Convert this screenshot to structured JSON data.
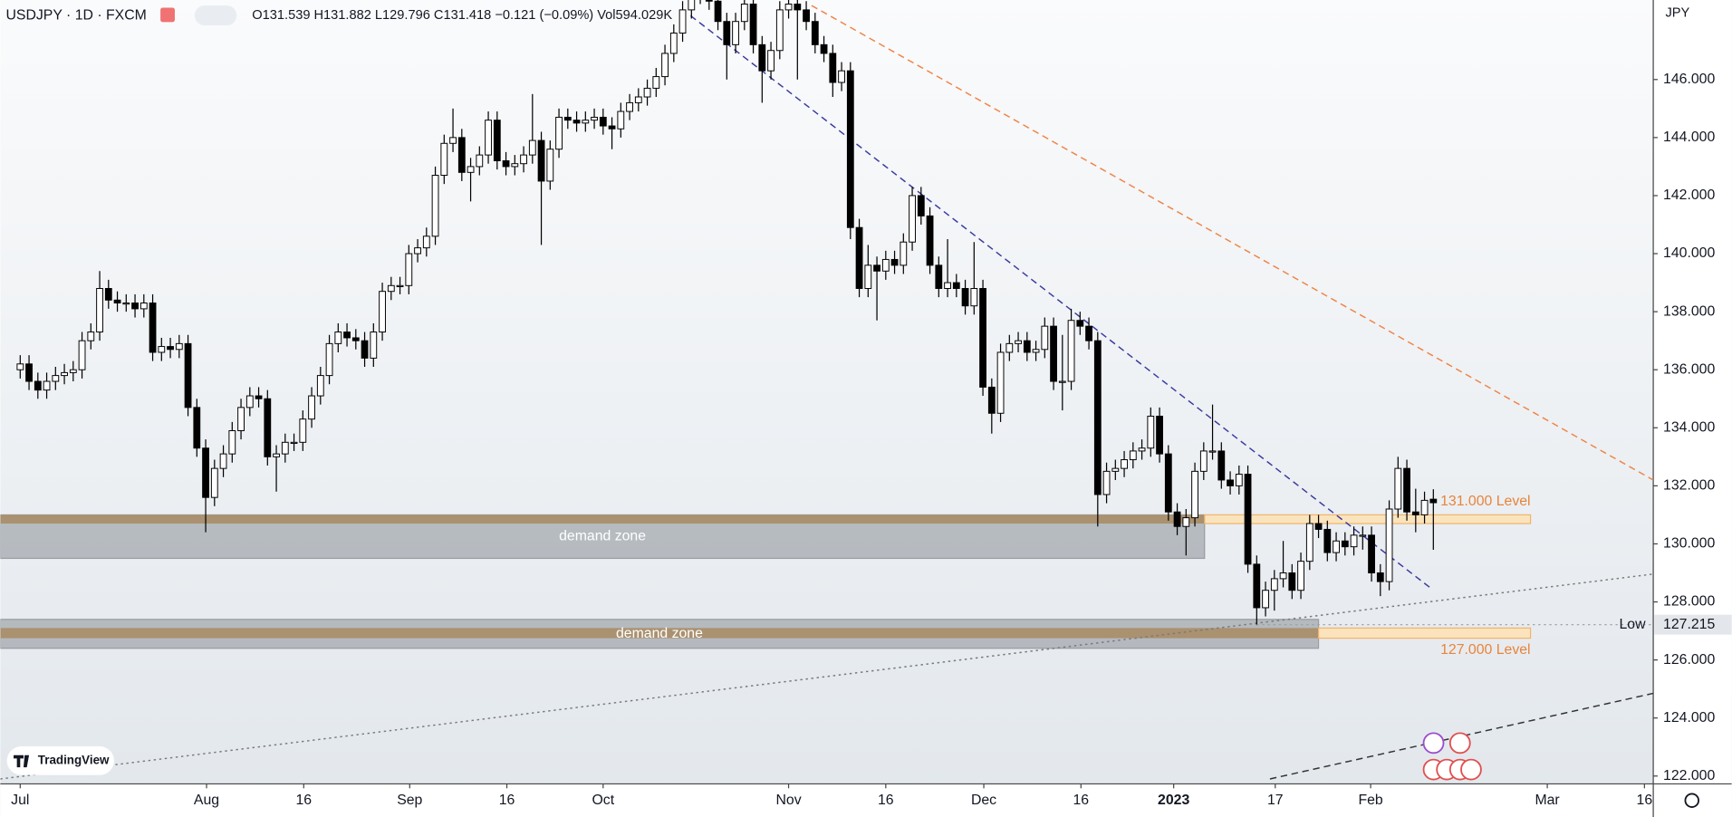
{
  "chart_data": {
    "type": "candlestick",
    "title": "USDJPY · 1D · FXCM",
    "legend": "O131.539 H131.882 L129.796 C131.418 −0.121 (−0.09%) Vol594.029K",
    "currency": "JPY",
    "watermark": "TradingView",
    "up_color": "#ffffff",
    "down_color": "#000000",
    "xlim": [
      -2.25,
      184.9
    ],
    "ylim": [
      121.73,
      148.74
    ],
    "grid": false,
    "xticks": [
      {
        "value": 0,
        "label": "Jul"
      },
      {
        "value": 21.1,
        "label": "Aug"
      },
      {
        "value": 32.1,
        "label": "16"
      },
      {
        "value": 44.1,
        "label": "Sep"
      },
      {
        "value": 55.1,
        "label": "16"
      },
      {
        "value": 66,
        "label": "Oct"
      },
      {
        "value": 87,
        "label": "Nov"
      },
      {
        "value": 98,
        "label": "16"
      },
      {
        "value": 109.1,
        "label": "Dec"
      },
      {
        "value": 120.1,
        "label": "16"
      },
      {
        "value": 130.6,
        "label": "2023",
        "bold": true
      },
      {
        "value": 142.1,
        "label": "17"
      },
      {
        "value": 152.9,
        "label": "Feb"
      },
      {
        "value": 172.9,
        "label": "Mar"
      },
      {
        "value": 183.9,
        "label": "16"
      }
    ],
    "yticks": [
      {
        "value": 122,
        "label": "122.000"
      },
      {
        "value": 124,
        "label": "124.000"
      },
      {
        "value": 126,
        "label": "126.000"
      },
      {
        "value": 128,
        "label": "128.000"
      },
      {
        "value": 130,
        "label": "130.000"
      },
      {
        "value": 132,
        "label": "132.000"
      },
      {
        "value": 134,
        "label": "134.000"
      },
      {
        "value": 136,
        "label": "136.000"
      },
      {
        "value": 138,
        "label": "138.000"
      },
      {
        "value": 140,
        "label": "140.000"
      },
      {
        "value": 142,
        "label": "142.000"
      },
      {
        "value": 144,
        "label": "144.000"
      },
      {
        "value": 146,
        "label": "146.000"
      }
    ],
    "open": [
      136.0,
      136.2,
      135.6,
      135.3,
      135.6,
      135.8,
      135.9,
      136.0,
      137.0,
      137.3,
      138.8,
      138.4,
      138.3,
      138.3,
      138.1,
      138.3,
      136.6,
      136.8,
      136.7,
      136.9,
      134.7,
      133.3,
      131.6,
      132.6,
      133.1,
      133.9,
      134.7,
      135.1,
      135.0,
      133.0,
      133.1,
      133.5,
      133.5,
      134.3,
      135.1,
      135.8,
      136.9,
      137.3,
      137.1,
      137.0,
      136.4,
      137.3,
      138.7,
      138.9,
      138.9,
      140.0,
      140.2,
      140.6,
      142.7,
      143.8,
      144.0,
      142.8,
      143.0,
      143.4,
      144.6,
      143.2,
      143.0,
      143.1,
      143.4,
      143.9,
      142.5,
      143.6,
      144.7,
      144.6,
      144.5,
      144.6,
      144.7,
      144.4,
      144.3,
      144.9,
      145.2,
      145.4,
      145.7,
      146.1,
      146.9,
      147.6,
      148.4,
      148.9,
      148.9,
      148.7,
      148.0,
      147.2,
      148.0,
      148.6,
      147.2,
      146.3,
      147.0,
      148.4,
      148.6,
      148.4,
      148.0,
      147.2,
      146.9,
      145.9,
      146.3,
      140.9,
      138.8,
      139.6,
      139.4,
      139.8,
      139.6,
      140.4,
      142.0,
      141.3,
      139.6,
      138.8,
      139.0,
      138.8,
      138.2,
      138.8,
      135.4,
      134.5,
      136.6,
      136.9,
      137.0,
      136.6,
      136.7,
      137.5,
      135.6,
      135.6,
      137.7,
      137.5,
      137.0,
      131.7,
      132.5,
      132.6,
      132.9,
      133.2,
      133.3,
      134.4,
      133.1,
      131.1,
      130.6,
      130.9,
      132.5,
      133.2,
      133.2,
      132.2,
      132.0,
      132.4,
      129.3,
      127.8,
      128.4,
      128.8,
      129.0,
      128.4,
      129.4,
      130.7,
      130.5,
      129.7,
      130.1,
      129.9,
      130.3,
      130.3,
      129.0,
      128.7,
      131.2,
      132.6,
      131.1,
      131.0,
      131.539
    ],
    "high": [
      136.5,
      136.5,
      135.9,
      135.9,
      136.1,
      136.2,
      136.3,
      137.3,
      137.6,
      139.4,
      139.1,
      138.7,
      138.6,
      138.6,
      138.6,
      138.6,
      137.1,
      137.1,
      137.2,
      137.2,
      135.0,
      133.6,
      132.9,
      133.4,
      134.2,
      135.0,
      135.4,
      135.4,
      135.3,
      133.4,
      133.8,
      133.8,
      134.6,
      135.4,
      136.1,
      137.2,
      137.6,
      137.6,
      137.4,
      137.3,
      137.6,
      139.0,
      139.2,
      139.2,
      140.3,
      140.5,
      140.9,
      143.0,
      144.1,
      145.0,
      144.3,
      143.3,
      143.7,
      144.9,
      144.9,
      143.5,
      143.4,
      143.7,
      145.5,
      144.2,
      143.9,
      145.0,
      145.0,
      144.9,
      144.9,
      145.0,
      145.0,
      144.7,
      145.2,
      145.5,
      145.7,
      146.0,
      146.4,
      147.2,
      147.9,
      148.7,
      149.2,
      149.2,
      149.2,
      149.0,
      148.3,
      148.3,
      148.9,
      148.9,
      147.5,
      147.3,
      148.7,
      148.9,
      148.9,
      148.7,
      148.3,
      147.5,
      147.2,
      146.6,
      146.6,
      141.2,
      140.3,
      139.9,
      140.1,
      140.1,
      140.7,
      142.3,
      142.3,
      141.6,
      139.9,
      140.5,
      139.3,
      139.1,
      140.4,
      139.1,
      135.7,
      136.9,
      137.2,
      137.3,
      137.3,
      137.0,
      137.8,
      137.8,
      137.2,
      138.1,
      138.0,
      137.8,
      137.3,
      132.8,
      132.9,
      133.2,
      133.5,
      133.6,
      134.7,
      134.7,
      133.4,
      131.4,
      131.2,
      132.8,
      133.5,
      134.8,
      133.5,
      132.5,
      132.7,
      132.7,
      129.6,
      128.7,
      129.1,
      130.1,
      129.3,
      129.7,
      131.0,
      131.0,
      130.8,
      130.4,
      130.4,
      130.6,
      130.6,
      130.6,
      129.3,
      131.5,
      133.0,
      132.9,
      131.9,
      131.8,
      131.882
    ],
    "low": [
      135.7,
      135.3,
      135.0,
      135.0,
      135.3,
      135.5,
      135.6,
      135.7,
      136.7,
      137.0,
      138.1,
      138.0,
      138.0,
      137.8,
      137.8,
      136.3,
      136.3,
      136.4,
      136.4,
      134.4,
      133.0,
      130.4,
      131.3,
      132.3,
      132.8,
      133.6,
      134.4,
      134.7,
      132.7,
      131.8,
      132.8,
      133.2,
      133.2,
      134.0,
      134.8,
      135.5,
      136.6,
      136.8,
      136.7,
      136.1,
      136.1,
      137.0,
      138.4,
      138.6,
      138.6,
      139.7,
      139.9,
      140.3,
      142.4,
      143.5,
      142.5,
      141.8,
      142.7,
      143.1,
      142.9,
      142.7,
      142.7,
      142.8,
      143.1,
      140.3,
      142.2,
      143.3,
      144.3,
      144.2,
      144.2,
      144.3,
      144.1,
      143.6,
      144.0,
      144.6,
      144.9,
      145.1,
      145.4,
      145.8,
      146.6,
      147.3,
      148.1,
      148.6,
      148.4,
      147.7,
      146.0,
      146.9,
      147.7,
      146.9,
      145.2,
      146.0,
      146.7,
      148.1,
      146.0,
      147.7,
      146.9,
      146.6,
      145.4,
      145.6,
      140.5,
      138.5,
      138.5,
      137.7,
      139.1,
      139.3,
      139.3,
      140.1,
      141.0,
      139.3,
      138.5,
      138.5,
      138.5,
      137.9,
      137.9,
      135.1,
      133.8,
      134.2,
      136.3,
      136.6,
      136.3,
      136.3,
      136.4,
      135.3,
      134.6,
      135.3,
      137.2,
      136.7,
      130.6,
      131.4,
      132.2,
      132.3,
      132.6,
      132.9,
      133.0,
      132.8,
      130.8,
      130.3,
      129.6,
      130.6,
      132.2,
      132.9,
      131.9,
      131.7,
      131.7,
      129.0,
      127.2,
      127.5,
      127.7,
      128.5,
      128.1,
      128.1,
      129.1,
      130.2,
      129.4,
      129.4,
      129.6,
      129.6,
      129.8,
      128.7,
      128.2,
      128.4,
      130.9,
      130.8,
      130.4,
      130.7,
      129.796
    ],
    "close": [
      136.2,
      135.6,
      135.3,
      135.6,
      135.8,
      135.9,
      136.0,
      137.0,
      137.3,
      138.8,
      138.4,
      138.3,
      138.3,
      138.1,
      138.3,
      136.6,
      136.8,
      136.7,
      136.9,
      134.7,
      133.3,
      131.6,
      132.6,
      133.1,
      133.9,
      134.7,
      135.1,
      135.0,
      133.0,
      133.1,
      133.5,
      133.5,
      134.3,
      135.1,
      135.8,
      136.9,
      137.3,
      137.1,
      137.0,
      136.4,
      137.3,
      138.7,
      138.9,
      138.9,
      140.0,
      140.2,
      140.6,
      142.7,
      143.8,
      144.0,
      142.8,
      143.0,
      143.4,
      144.6,
      143.2,
      143.0,
      143.1,
      143.4,
      143.9,
      142.5,
      143.6,
      144.7,
      144.6,
      144.5,
      144.6,
      144.7,
      144.4,
      144.3,
      144.9,
      145.2,
      145.4,
      145.7,
      146.1,
      146.9,
      147.6,
      148.4,
      148.9,
      148.9,
      148.7,
      148.0,
      147.2,
      148.0,
      148.6,
      147.2,
      146.3,
      147.0,
      148.4,
      148.6,
      148.4,
      148.0,
      147.2,
      146.9,
      145.9,
      146.3,
      140.9,
      138.8,
      139.6,
      139.4,
      139.8,
      139.6,
      140.4,
      142.0,
      141.3,
      139.6,
      138.8,
      139.0,
      138.8,
      138.2,
      138.8,
      135.4,
      134.5,
      136.6,
      136.9,
      137.0,
      136.6,
      136.7,
      137.5,
      135.6,
      135.6,
      137.7,
      137.5,
      137.0,
      131.7,
      132.5,
      132.6,
      132.9,
      133.2,
      133.3,
      134.4,
      133.1,
      131.1,
      130.6,
      130.9,
      132.5,
      133.2,
      133.2,
      132.2,
      132.0,
      132.4,
      129.3,
      127.8,
      128.4,
      128.8,
      129.0,
      128.4,
      129.4,
      130.7,
      130.5,
      129.7,
      130.1,
      129.9,
      130.3,
      130.3,
      129.0,
      128.7,
      131.2,
      132.6,
      131.1,
      131.0,
      131.5,
      131.418
    ],
    "zones": [
      {
        "label": "demand zone",
        "top": 131.0,
        "bottom": 129.5,
        "band_top": 131.0,
        "band_bottom": 130.7,
        "x_end": 134.1
      },
      {
        "label": "demand zone",
        "top": 127.4,
        "bottom": 126.4,
        "band_top": 127.1,
        "band_bottom": 126.75,
        "x_end": 147.0
      }
    ],
    "levels": [
      {
        "label": "131.000 Level",
        "top": 131.0,
        "bottom": 130.7,
        "x_start": 134.1,
        "x_end": 171,
        "label_position": "above"
      },
      {
        "label": "127.000 Level",
        "top": 127.1,
        "bottom": 126.75,
        "x_start": 147.0,
        "x_end": 171,
        "label_position": "below"
      }
    ],
    "trend_lines": [
      {
        "x": [
          75.9,
          159.6
        ],
        "y": [
          148.2,
          128.5
        ],
        "color": "#3b3b9e",
        "style": "dashed"
      },
      {
        "x": [
          89.6,
          184.9
        ],
        "y": [
          148.55,
          132.2
        ],
        "color": "#ef8446",
        "style": "dashed"
      },
      {
        "x": [
          -2.25,
          184.9
        ],
        "y": [
          121.9,
          128.96
        ],
        "color": "#7a7a7a",
        "style": "dotted"
      },
      {
        "x": [
          141.5,
          184.9
        ],
        "y": [
          121.9,
          124.85
        ],
        "color": "#333333",
        "style": "dashed"
      }
    ],
    "low_marker": {
      "label": "Low",
      "value": 127.215
    }
  }
}
